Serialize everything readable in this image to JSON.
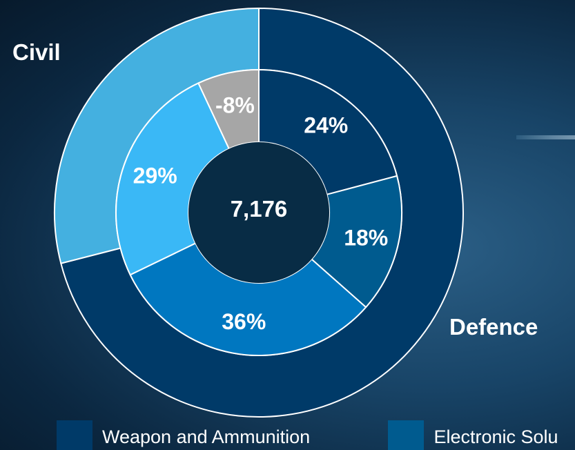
{
  "chart_data": {
    "type": "donut",
    "center_label": "7,176",
    "outer_ring": [
      {
        "name": "Civil",
        "value": 29,
        "color": "#44b0e0"
      },
      {
        "name": "Defence",
        "value": 71,
        "color": "#003a68"
      }
    ],
    "inner_ring": [
      {
        "value": 24,
        "label": "24%",
        "color": "#003a68"
      },
      {
        "value": 18,
        "label": "18%",
        "color": "#005b8f"
      },
      {
        "value": 36,
        "label": "36%",
        "color": "#0077c0"
      },
      {
        "value": 29,
        "label": "29%",
        "color": "#3ab8f6"
      },
      {
        "value": 8,
        "label": "-8%",
        "color": "#a6a6a6"
      }
    ],
    "legend": [
      {
        "label": "Weapon and Ammunition",
        "color": "#003a68"
      },
      {
        "label": "Electronic Solu",
        "color": "#005b8f"
      }
    ]
  },
  "colors": {
    "center": "#082c45",
    "ring_border": "#ffffff"
  }
}
